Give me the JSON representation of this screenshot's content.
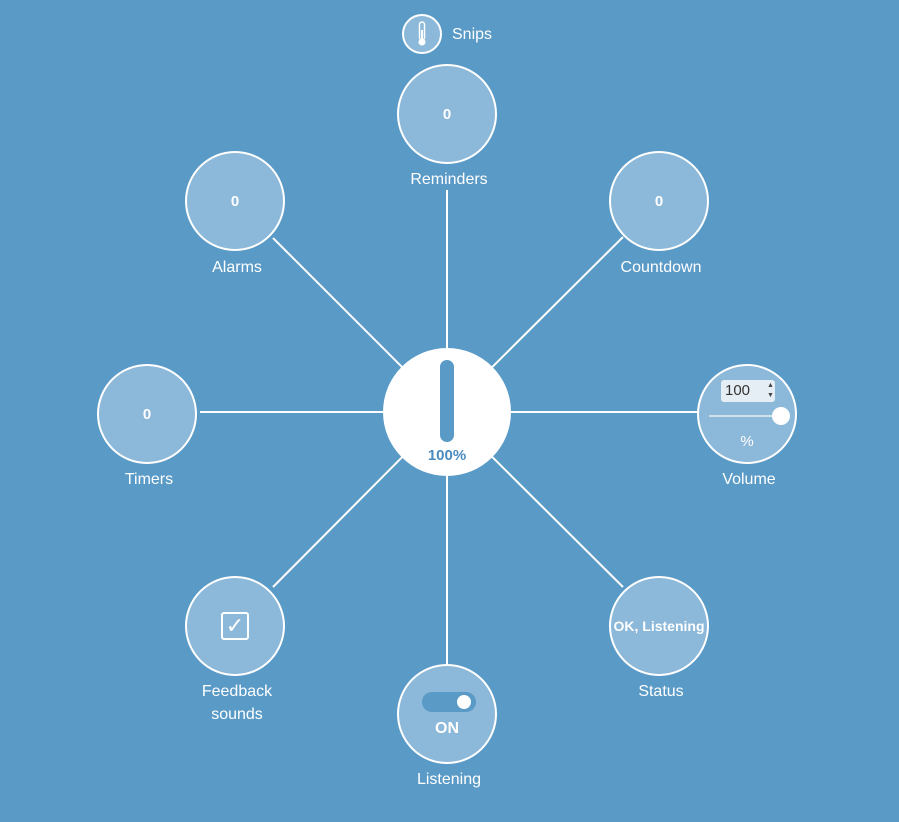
{
  "brand": {
    "name": "Snips",
    "icon": "thermometer-icon"
  },
  "hub": {
    "value": "100%",
    "level": 1.0,
    "color": "#5a9ac6"
  },
  "nodes": {
    "reminders": {
      "value": "0",
      "label": "Reminders"
    },
    "alarms": {
      "value": "0",
      "label": "Alarms"
    },
    "countdown": {
      "value": "0",
      "label": "Countdown"
    },
    "timers": {
      "value": "0",
      "label": "Timers"
    },
    "volume": {
      "value": "100",
      "unit": "%",
      "label": "Volume",
      "level": 1.0
    },
    "feedback": {
      "label_line1": "Feedback",
      "label_line2": "sounds",
      "checked": true,
      "icon": "checkbox-checked-icon"
    },
    "listening": {
      "state": "ON",
      "label": "Listening",
      "on": true
    },
    "status": {
      "value": "OK, Listening",
      "label": "Status"
    }
  },
  "colors": {
    "background": "#5a9ac6",
    "node_fill": "#8cb8d9",
    "line": "#ffffff"
  }
}
